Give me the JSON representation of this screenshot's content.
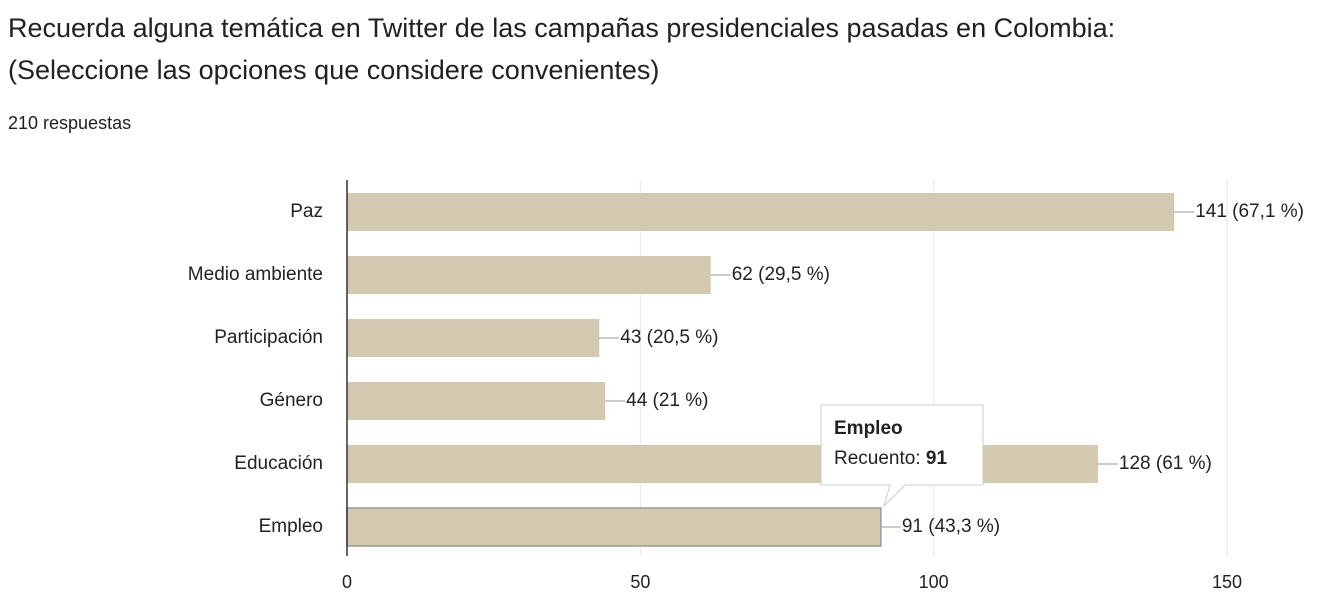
{
  "chart_data": {
    "type": "bar",
    "orientation": "horizontal",
    "title": "Recuerda alguna temática en Twitter de las campañas presidenciales pasadas en Colombia:",
    "subtitle": "(Seleccione las opciones que considere convenientes)",
    "response_count": "210 respuestas",
    "categories": [
      "Paz",
      "Medio ambiente",
      "Participación",
      "Género",
      "Educación",
      "Empleo"
    ],
    "values": [
      141,
      62,
      43,
      44,
      128,
      91
    ],
    "value_labels": [
      "141 (67,1 %)",
      "62 (29,5 %)",
      "43 (20,5 %)",
      "44 (21 %)",
      "128 (61 %)",
      "91 (43,3 %)"
    ],
    "color": "#d3c9b0",
    "xlim": [
      0,
      150
    ],
    "xticks": [
      0,
      50,
      100,
      150
    ],
    "grid": true,
    "tooltip": {
      "title": "Empleo",
      "label": "Recuento:",
      "value": 91
    }
  }
}
